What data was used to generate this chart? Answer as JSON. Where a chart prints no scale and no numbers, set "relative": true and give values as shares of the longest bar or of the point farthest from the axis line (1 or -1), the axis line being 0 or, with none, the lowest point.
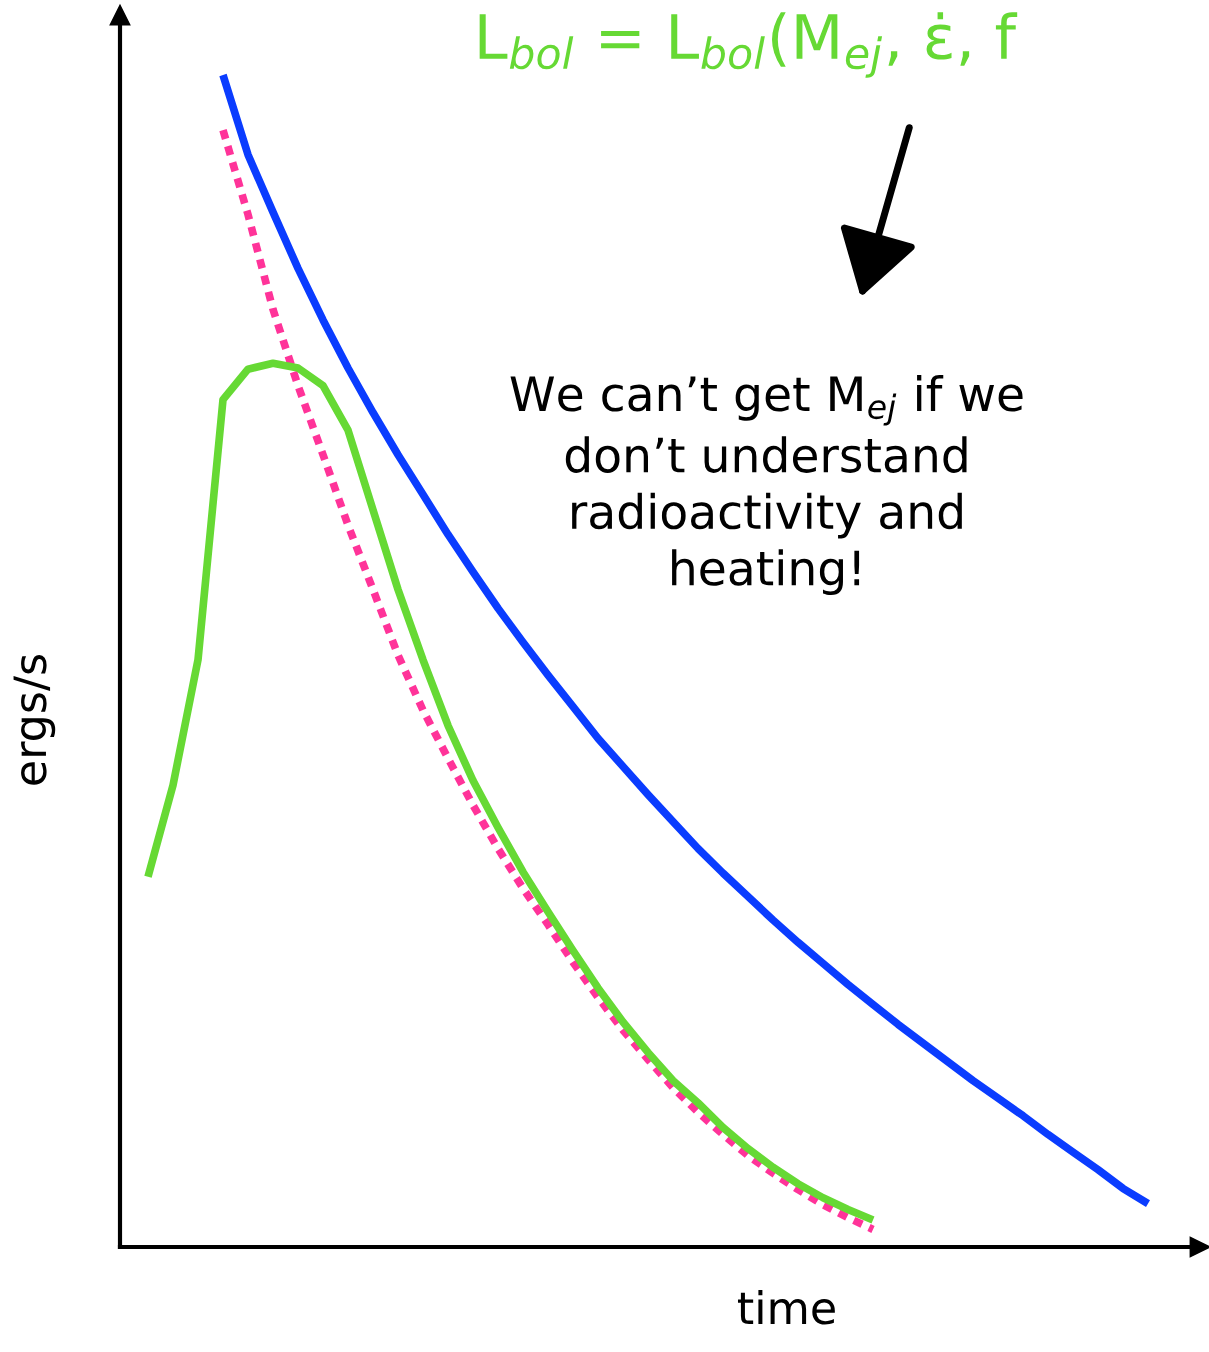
{
  "chart_data": {
    "type": "line",
    "relative": true,
    "title": "L$_{bol}$ = L$_{bol}$(M$_{ej}$, ε̇, f",
    "xlabel": "time",
    "ylabel": "ergs/s",
    "annotations": [
      "We can’t get M$_{ej}$ if we\ndon’t understand\nradioactivity and\nheating!"
    ],
    "categories": [
      null,
      null,
      null,
      null,
      null,
      null,
      null,
      null,
      null,
      null,
      null,
      null,
      null,
      null,
      null,
      null,
      null,
      null,
      null,
      null,
      null,
      null,
      null,
      null,
      null,
      null,
      null,
      null,
      null,
      null,
      null,
      null,
      null,
      null,
      null,
      null,
      null,
      null,
      null,
      null,
      null
    ],
    "series": [
      {
        "color": "#0a3cff",
        "line_style": "solid",
        "values": [
          null,
          null,
          null,
          1.0,
          0.932,
          0.883,
          0.835,
          0.791,
          0.75,
          0.712,
          0.676,
          0.642,
          0.608,
          0.576,
          0.545,
          0.516,
          0.488,
          0.461,
          0.434,
          0.41,
          0.386,
          0.363,
          0.34,
          0.319,
          0.299,
          0.279,
          0.26,
          0.242,
          0.224,
          0.207,
          0.19,
          0.174,
          0.158,
          0.142,
          0.127,
          0.112,
          0.096,
          0.081,
          0.066,
          0.05,
          0.037
        ]
      },
      {
        "color": "#ff3399",
        "line_style": "dotted",
        "values": [
          null,
          null,
          null,
          0.953,
          0.881,
          0.8,
          0.735,
          0.676,
          0.616,
          0.561,
          0.505,
          0.458,
          0.417,
          0.377,
          0.34,
          0.306,
          0.275,
          0.243,
          0.213,
          0.185,
          0.16,
          0.136,
          0.115,
          0.096,
          0.078,
          0.063,
          0.049,
          0.036,
          0.025,
          0.015,
          null,
          null,
          null,
          null,
          null,
          null,
          null,
          null,
          null,
          null,
          null
        ]
      },
      {
        "color": "#66d934",
        "line_style": "solid",
        "values": [
          0.316,
          0.394,
          0.501,
          0.723,
          0.749,
          0.754,
          0.75,
          0.735,
          0.697,
          0.629,
          0.561,
          0.501,
          0.445,
          0.398,
          0.358,
          0.32,
          0.286,
          0.253,
          0.221,
          0.192,
          0.166,
          0.142,
          0.123,
          0.102,
          0.084,
          0.068,
          0.054,
          0.042,
          0.032,
          0.023,
          null,
          null,
          null,
          null,
          null,
          null,
          null,
          null,
          null,
          null,
          null
        ]
      }
    ]
  }
}
